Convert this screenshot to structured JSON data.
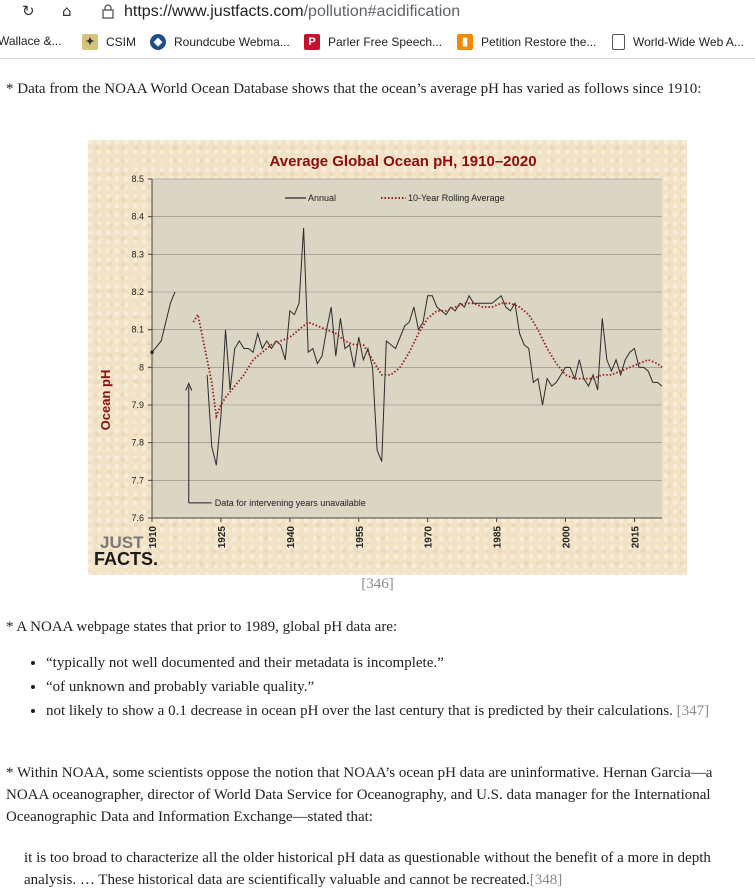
{
  "browser": {
    "url_host": "https://www.justfacts.com",
    "url_path": "/pollution#acidification",
    "bookmarks": [
      "Wallace &...",
      "CSIM",
      "Roundcube Webma...",
      "Parler Free Speech...",
      "Petition Restore the...",
      "World-Wide Web A..."
    ]
  },
  "intro_text": "* Data from the NOAA World Ocean Database shows that the ocean’s average pH has varied as follows since 1910:",
  "chart_citation": "[346]",
  "para2_text": "* A NOAA webpage states that prior to 1989, global pH data are:",
  "bullets": [
    {
      "text": "“typically not well documented and their metadata is incomplete.”",
      "cite": ""
    },
    {
      "text": "“of unknown and probably variable quality.”",
      "cite": ""
    },
    {
      "text": "not likely to show a 0.1 decrease in ocean pH over the last century that is predicted by their calculations.",
      "cite": "[347]"
    }
  ],
  "para3_text": "* Within NOAA, some scientists oppose the notion that NOAA’s ocean pH data are uninformative. Hernan Garcia—a NOAA oceanographer, director of World Data Service for Oceanography, and U.S. data manager for the International Oceanographic Data and Information Exchange—stated that:",
  "quote_text": "it is too broad to characterize all the older historical pH data as questionable without the benefit of a more in depth analysis. … These historical data are scientifically valuable and cannot be recreated.",
  "quote_cite": "[348]",
  "logo": {
    "line1": "JUST",
    "line2": "FACTS."
  },
  "colors": {
    "title": "#8b0d0d",
    "annual": "#2b2b2b",
    "rolling": "#9b1b1b",
    "plot_bg": "#dbd5c4",
    "chart_bg": "#f3e3c6"
  },
  "chart_data": {
    "type": "line",
    "title": "Average Global Ocean pH, 1910–2020",
    "ylabel": "Ocean pH",
    "xlabel": "",
    "ylim": [
      7.6,
      8.5
    ],
    "xlim": [
      1910,
      2021
    ],
    "yticks": [
      7.6,
      7.7,
      7.8,
      7.9,
      8,
      8.1,
      8.2,
      8.3,
      8.4,
      8.5
    ],
    "xticks": [
      1910,
      1925,
      1940,
      1955,
      1970,
      1985,
      2000,
      2015
    ],
    "grid": true,
    "legend_position": "top-right",
    "annotation": "Data for intervening years unavailable",
    "series": [
      {
        "name": "Annual",
        "style": "solid",
        "x": [
          1910,
          1912,
          1914,
          1915,
          1922,
          1923,
          1924,
          1925,
          1926,
          1927,
          1928,
          1929,
          1930,
          1931,
          1932,
          1933,
          1934,
          1935,
          1936,
          1937,
          1938,
          1939,
          1940,
          1941,
          1942,
          1943,
          1944,
          1945,
          1946,
          1947,
          1948,
          1949,
          1950,
          1951,
          1952,
          1953,
          1954,
          1955,
          1956,
          1957,
          1958,
          1959,
          1960,
          1961,
          1962,
          1963,
          1964,
          1965,
          1966,
          1967,
          1968,
          1969,
          1970,
          1971,
          1972,
          1973,
          1974,
          1975,
          1976,
          1977,
          1978,
          1979,
          1980,
          1981,
          1982,
          1983,
          1984,
          1985,
          1986,
          1987,
          1988,
          1989,
          1990,
          1991,
          1992,
          1993,
          1994,
          1995,
          1996,
          1997,
          1998,
          1999,
          2000,
          2001,
          2002,
          2003,
          2004,
          2005,
          2006,
          2007,
          2008,
          2009,
          2010,
          2011,
          2012,
          2013,
          2014,
          2015,
          2016,
          2017,
          2018,
          2019,
          2020,
          2021
        ],
        "y": [
          8.04,
          8.07,
          8.17,
          8.2,
          7.98,
          7.79,
          7.74,
          7.87,
          8.1,
          7.94,
          8.05,
          8.07,
          8.05,
          8.05,
          8.04,
          8.09,
          8.05,
          8.07,
          8.05,
          8.07,
          8.06,
          8.02,
          8.15,
          8.14,
          8.17,
          8.37,
          8.04,
          8.05,
          8.01,
          8.03,
          8.1,
          8.16,
          8.03,
          8.13,
          8.05,
          8.06,
          8.0,
          8.08,
          8.02,
          8.05,
          8.0,
          7.78,
          7.75,
          8.07,
          8.06,
          8.05,
          8.08,
          8.11,
          8.12,
          8.16,
          8.1,
          8.12,
          8.19,
          8.19,
          8.16,
          8.15,
          8.14,
          8.16,
          8.15,
          8.17,
          8.16,
          8.19,
          8.17,
          8.17,
          8.17,
          8.17,
          8.17,
          8.18,
          8.19,
          8.16,
          8.15,
          8.17,
          8.09,
          8.06,
          8.05,
          7.96,
          7.97,
          7.9,
          7.97,
          7.95,
          7.96,
          7.98,
          8.0,
          8.0,
          7.97,
          8.02,
          7.97,
          7.95,
          7.98,
          7.94,
          8.13,
          8.02,
          7.99,
          8.02,
          7.98,
          8.02,
          8.04,
          8.05,
          8.0,
          8.0,
          7.99,
          7.96,
          7.96,
          7.95
        ]
      },
      {
        "name": "10-Year Rolling Average",
        "style": "dotted",
        "x": [
          1919,
          1920,
          1921,
          1922,
          1923,
          1924,
          1925,
          1926,
          1928,
          1930,
          1932,
          1934,
          1936,
          1938,
          1940,
          1942,
          1944,
          1946,
          1948,
          1950,
          1952,
          1954,
          1956,
          1958,
          1960,
          1962,
          1964,
          1966,
          1968,
          1970,
          1972,
          1974,
          1976,
          1978,
          1980,
          1982,
          1984,
          1986,
          1988,
          1990,
          1992,
          1994,
          1996,
          1998,
          2000,
          2002,
          2004,
          2006,
          2008,
          2010,
          2012,
          2014,
          2016,
          2018,
          2020,
          2021
        ],
        "y": [
          8.12,
          8.14,
          8.08,
          8.02,
          7.96,
          7.87,
          7.9,
          7.92,
          7.95,
          7.98,
          8.02,
          8.04,
          8.06,
          8.07,
          8.08,
          8.1,
          8.12,
          8.11,
          8.1,
          8.09,
          8.07,
          8.06,
          8.06,
          8.02,
          7.98,
          7.98,
          8.0,
          8.04,
          8.09,
          8.13,
          8.15,
          8.15,
          8.16,
          8.17,
          8.17,
          8.16,
          8.16,
          8.17,
          8.17,
          8.16,
          8.14,
          8.1,
          8.05,
          8.01,
          7.98,
          7.97,
          7.97,
          7.97,
          7.98,
          7.98,
          7.99,
          8.0,
          8.01,
          8.02,
          8.01,
          8.0
        ]
      }
    ]
  }
}
